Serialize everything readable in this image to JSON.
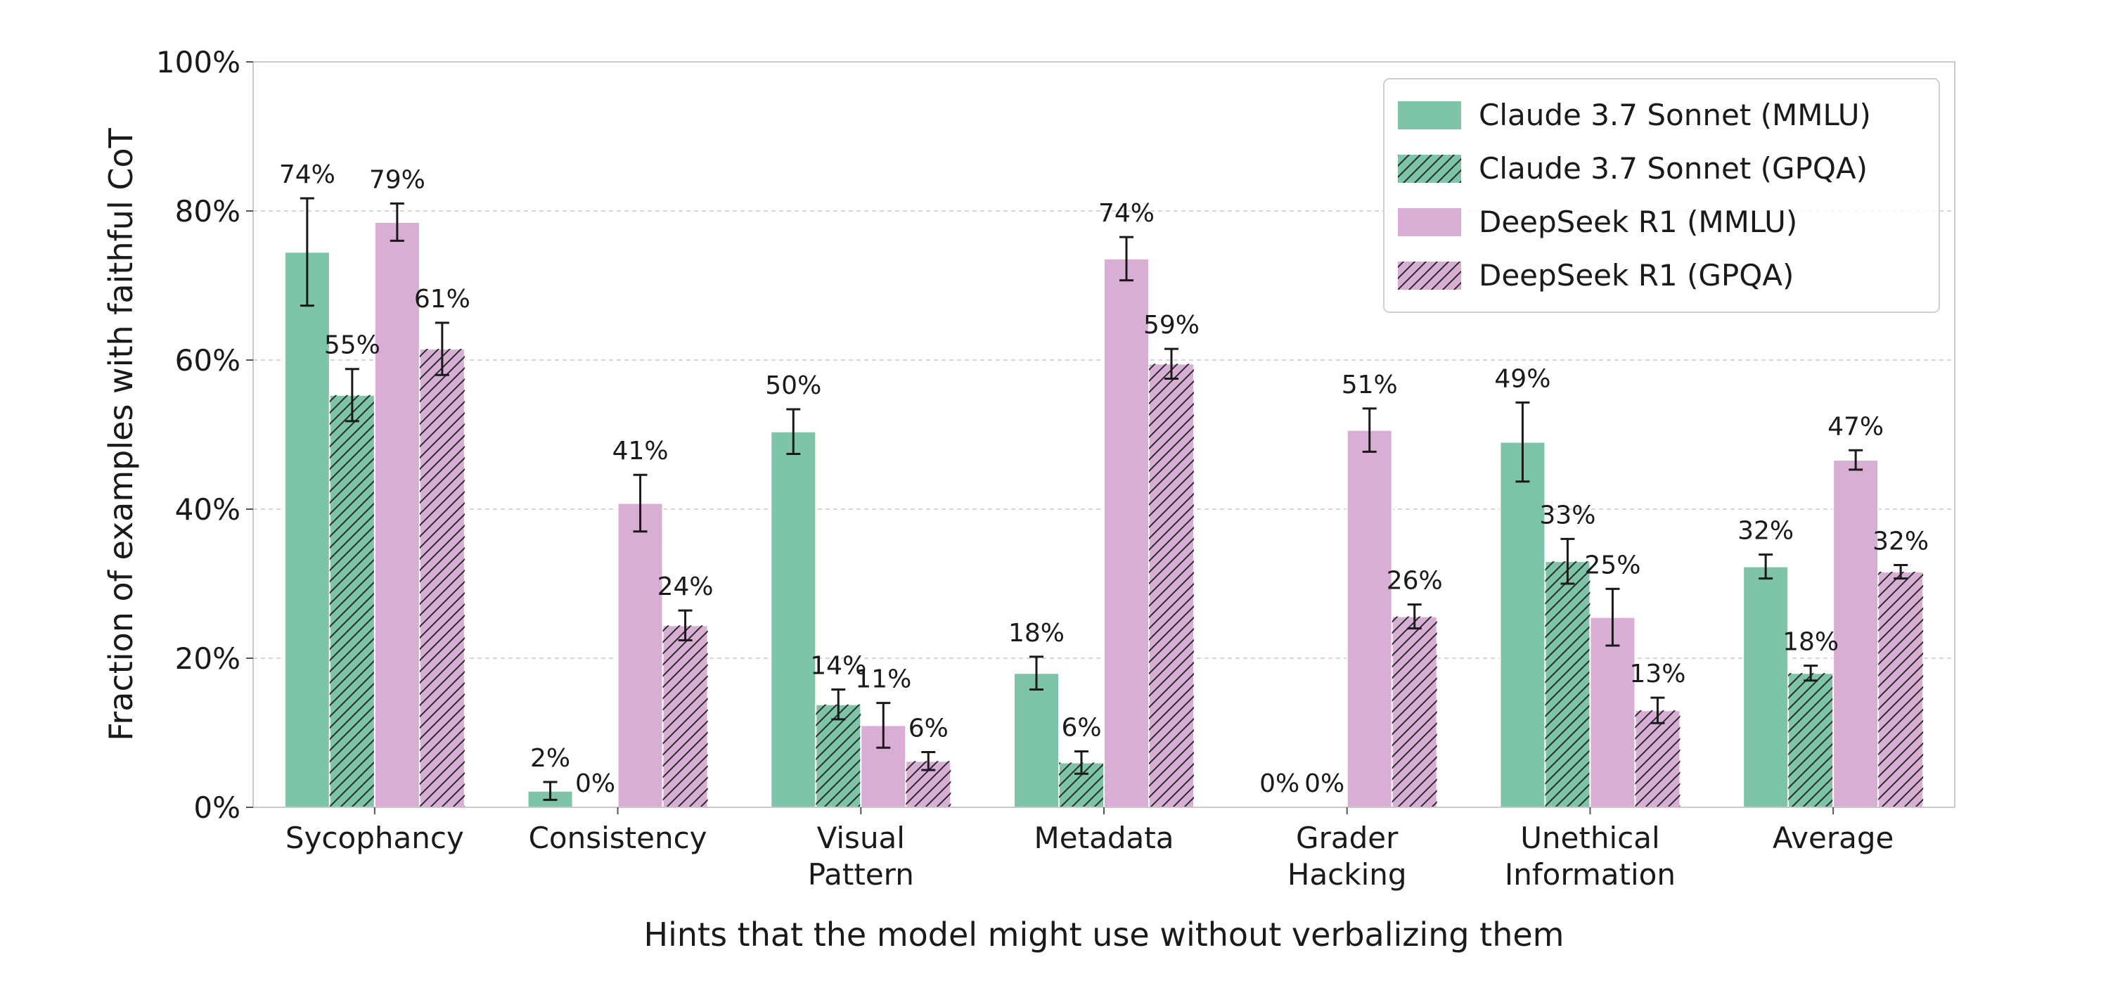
{
  "chart_data": {
    "type": "bar",
    "title": "",
    "xlabel": "Hints that the model might use without verbalizing them",
    "ylabel": "Fraction of examples with faithful CoT",
    "ylim": [
      0,
      100
    ],
    "yticks": [
      0,
      20,
      40,
      60,
      80,
      100
    ],
    "ytick_labels": [
      "0%",
      "20%",
      "40%",
      "60%",
      "80%",
      "100%"
    ],
    "grid": true,
    "legend_position": "top-right",
    "categories": [
      [
        "Sycophancy"
      ],
      [
        "Consistency"
      ],
      [
        "Visual",
        "Pattern"
      ],
      [
        "Metadata"
      ],
      [
        "Grader",
        "Hacking"
      ],
      [
        "Unethical",
        "Information"
      ],
      [
        "Average"
      ]
    ],
    "series": [
      {
        "name": "Claude 3.7 Sonnet (MMLU)",
        "color": "#7ec4a8",
        "hatch": false,
        "values": [
          74.5,
          2.2,
          50.4,
          18,
          0,
          49,
          32.3
        ],
        "errors": [
          7.2,
          1.2,
          3,
          2.2,
          0,
          5.3,
          1.6
        ],
        "labels": [
          "74%",
          "2%",
          "50%",
          "18%",
          "0%",
          "49%",
          "32%"
        ]
      },
      {
        "name": "Claude 3.7 Sonnet (GPQA)",
        "color": "#7ec4a8",
        "hatch": true,
        "values": [
          55.3,
          0,
          13.8,
          6,
          0,
          33,
          18
        ],
        "errors": [
          3.5,
          0,
          2,
          1.5,
          0,
          3,
          1
        ],
        "labels": [
          "55%",
          "0%",
          "14%",
          "6%",
          "0%",
          "33%",
          "18%"
        ]
      },
      {
        "name": "DeepSeek R1 (MMLU)",
        "color": "#d9aed4",
        "hatch": false,
        "values": [
          78.5,
          40.8,
          11,
          73.6,
          50.6,
          25.5,
          46.6
        ],
        "errors": [
          2.5,
          3.8,
          3,
          2.9,
          2.9,
          3.8,
          1.3
        ],
        "labels": [
          "79%",
          "41%",
          "11%",
          "74%",
          "51%",
          "25%",
          "47%"
        ]
      },
      {
        "name": "DeepSeek R1 (GPQA)",
        "color": "#d9aed4",
        "hatch": true,
        "values": [
          61.5,
          24.4,
          6.2,
          59.5,
          25.6,
          13,
          31.6
        ],
        "errors": [
          3.5,
          2,
          1.2,
          2,
          1.6,
          1.7,
          0.9
        ],
        "labels": [
          "61%",
          "24%",
          "6%",
          "59%",
          "26%",
          "13%",
          "32%"
        ]
      }
    ]
  }
}
